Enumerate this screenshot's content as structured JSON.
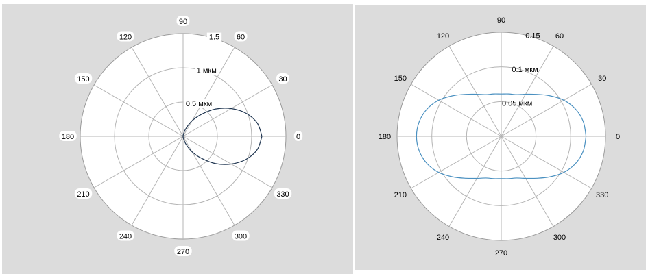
{
  "chart_data": [
    {
      "type": "polar",
      "title": "",
      "angle_ticks": [
        "0",
        "30",
        "60",
        "90",
        "120",
        "150",
        "180",
        "210",
        "240",
        "270",
        "300",
        "330"
      ],
      "radial_ticks": [
        "0.5 мкм",
        "1 мкм",
        "1.5"
      ],
      "radial_tick_values": [
        0.5,
        1.0,
        1.5
      ],
      "rlim": [
        0,
        1.5
      ],
      "grid": true,
      "series": [
        {
          "theta_deg": [
            0,
            10,
            20,
            30,
            40,
            50,
            60,
            70,
            80,
            90,
            270,
            280,
            290,
            300,
            310,
            320,
            330,
            340,
            350,
            360
          ],
          "r": [
            1.15,
            1.1,
            0.98,
            0.81,
            0.62,
            0.42,
            0.26,
            0.12,
            0.03,
            0.0,
            0.0,
            0.03,
            0.12,
            0.26,
            0.42,
            0.62,
            0.81,
            0.98,
            1.1,
            1.15
          ],
          "color": "#1f3550"
        }
      ]
    },
    {
      "type": "polar",
      "title": "",
      "angle_ticks": [
        "0",
        "30",
        "60",
        "90",
        "120",
        "150",
        "180",
        "210",
        "240",
        "270",
        "300",
        "330"
      ],
      "radial_ticks": [
        "0.05 мкм",
        "0.1 мкм",
        "0.15"
      ],
      "radial_tick_values": [
        0.05,
        0.1,
        0.15
      ],
      "rlim": [
        0,
        0.15
      ],
      "grid": true,
      "series": [
        {
          "theta_deg": [
            0,
            10,
            20,
            30,
            40,
            50,
            60,
            70,
            80,
            90,
            100,
            110,
            120,
            130,
            140,
            150,
            160,
            170,
            180,
            190,
            200,
            210,
            220,
            230,
            240,
            250,
            260,
            270,
            280,
            290,
            300,
            310,
            320,
            330,
            340,
            350,
            360
          ],
          "r": [
            0.122,
            0.12,
            0.114,
            0.104,
            0.091,
            0.079,
            0.07,
            0.064,
            0.062,
            0.061,
            0.062,
            0.064,
            0.07,
            0.079,
            0.091,
            0.104,
            0.114,
            0.12,
            0.122,
            0.12,
            0.114,
            0.104,
            0.091,
            0.079,
            0.07,
            0.064,
            0.062,
            0.061,
            0.062,
            0.064,
            0.07,
            0.079,
            0.091,
            0.104,
            0.114,
            0.12,
            0.122
          ],
          "color": "#4a90c0"
        }
      ]
    }
  ]
}
